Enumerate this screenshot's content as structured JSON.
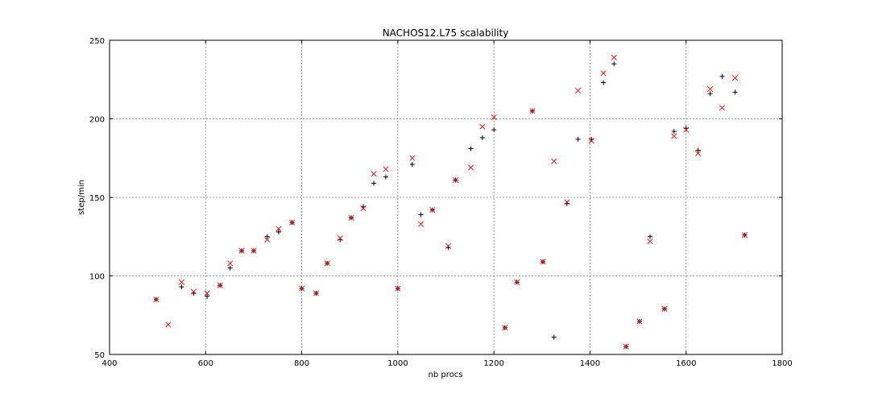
{
  "chart_data": {
    "type": "scatter",
    "title": "NACHOS12.L75 scalability",
    "xlabel": "nb procs",
    "ylabel": "step/min",
    "xlim": [
      400,
      1800
    ],
    "ylim": [
      50,
      250
    ],
    "x_ticks": [
      "400",
      "600",
      "800",
      "1000",
      "1200",
      "1400",
      "1600",
      "1800"
    ],
    "y_ticks": [
      "50",
      "100",
      "150",
      "200",
      "250"
    ],
    "grid": true,
    "series": [
      {
        "marker": "+",
        "color": "#000000",
        "points": [
          [
            497,
            85
          ],
          [
            550,
            93
          ],
          [
            575,
            89
          ],
          [
            603,
            87
          ],
          [
            630,
            94
          ],
          [
            651,
            105
          ],
          [
            675,
            116
          ],
          [
            700,
            116
          ],
          [
            728,
            125
          ],
          [
            752,
            128
          ],
          [
            780,
            134
          ],
          [
            800,
            92
          ],
          [
            830,
            89
          ],
          [
            853,
            108
          ],
          [
            880,
            123
          ],
          [
            903,
            137
          ],
          [
            928,
            144
          ],
          [
            950,
            159
          ],
          [
            975,
            163
          ],
          [
            1000,
            92
          ],
          [
            1030,
            171
          ],
          [
            1048,
            139
          ],
          [
            1072,
            142
          ],
          [
            1105,
            118
          ],
          [
            1120,
            161
          ],
          [
            1152,
            181
          ],
          [
            1176,
            188
          ],
          [
            1200,
            193
          ],
          [
            1223,
            67
          ],
          [
            1248,
            96
          ],
          [
            1280,
            205
          ],
          [
            1302,
            109
          ],
          [
            1325,
            61
          ],
          [
            1352,
            146
          ],
          [
            1375,
            187
          ],
          [
            1403,
            187
          ],
          [
            1428,
            223
          ],
          [
            1450,
            235
          ],
          [
            1475,
            55
          ],
          [
            1503,
            71
          ],
          [
            1525,
            125
          ],
          [
            1555,
            79
          ],
          [
            1575,
            192
          ],
          [
            1600,
            194
          ],
          [
            1625,
            180
          ],
          [
            1650,
            216
          ],
          [
            1675,
            227
          ],
          [
            1702,
            217
          ],
          [
            1722,
            126
          ]
        ]
      },
      {
        "marker": "x",
        "color": "#ff0000",
        "points": [
          [
            497,
            85
          ],
          [
            522,
            69
          ],
          [
            550,
            96
          ],
          [
            575,
            90
          ],
          [
            603,
            89
          ],
          [
            630,
            94
          ],
          [
            651,
            108
          ],
          [
            675,
            116
          ],
          [
            700,
            116
          ],
          [
            728,
            123
          ],
          [
            752,
            130
          ],
          [
            780,
            134
          ],
          [
            800,
            92
          ],
          [
            830,
            89
          ],
          [
            853,
            108
          ],
          [
            880,
            124
          ],
          [
            903,
            137
          ],
          [
            928,
            143
          ],
          [
            950,
            165
          ],
          [
            975,
            168
          ],
          [
            1000,
            92
          ],
          [
            1030,
            175
          ],
          [
            1048,
            133
          ],
          [
            1072,
            142
          ],
          [
            1105,
            119
          ],
          [
            1120,
            161
          ],
          [
            1152,
            169
          ],
          [
            1176,
            195
          ],
          [
            1200,
            201
          ],
          [
            1223,
            67
          ],
          [
            1248,
            96
          ],
          [
            1280,
            205
          ],
          [
            1302,
            109
          ],
          [
            1325,
            173
          ],
          [
            1352,
            147
          ],
          [
            1375,
            218
          ],
          [
            1403,
            186
          ],
          [
            1428,
            229
          ],
          [
            1450,
            239
          ],
          [
            1475,
            55
          ],
          [
            1503,
            71
          ],
          [
            1525,
            122
          ],
          [
            1555,
            79
          ],
          [
            1575,
            189
          ],
          [
            1600,
            193
          ],
          [
            1625,
            178
          ],
          [
            1650,
            219
          ],
          [
            1675,
            207
          ],
          [
            1702,
            226
          ],
          [
            1722,
            126
          ]
        ]
      }
    ]
  }
}
